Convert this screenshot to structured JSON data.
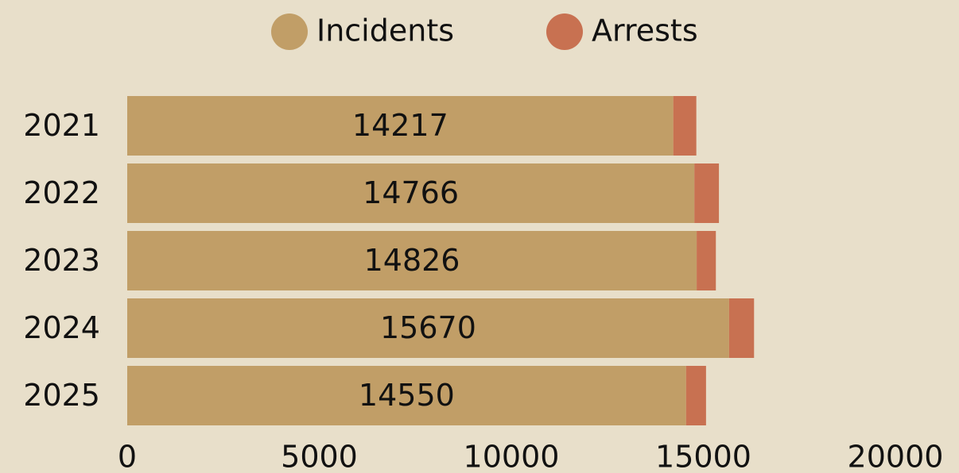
{
  "chart_data": {
    "type": "stacked-barh",
    "categories": [
      "2021",
      "2022",
      "2023",
      "2024",
      "2025"
    ],
    "series": [
      {
        "name": "Incidents",
        "color": "#c19e67",
        "values": [
          14217,
          14766,
          14826,
          15670,
          14550
        ]
      },
      {
        "name": "Arrests",
        "color": "#c87151",
        "values": [
          600,
          640,
          500,
          650,
          520
        ]
      }
    ],
    "xlim": [
      0,
      20000
    ],
    "xticks": [
      0,
      5000,
      10000,
      15000,
      20000
    ],
    "legend": "top"
  }
}
